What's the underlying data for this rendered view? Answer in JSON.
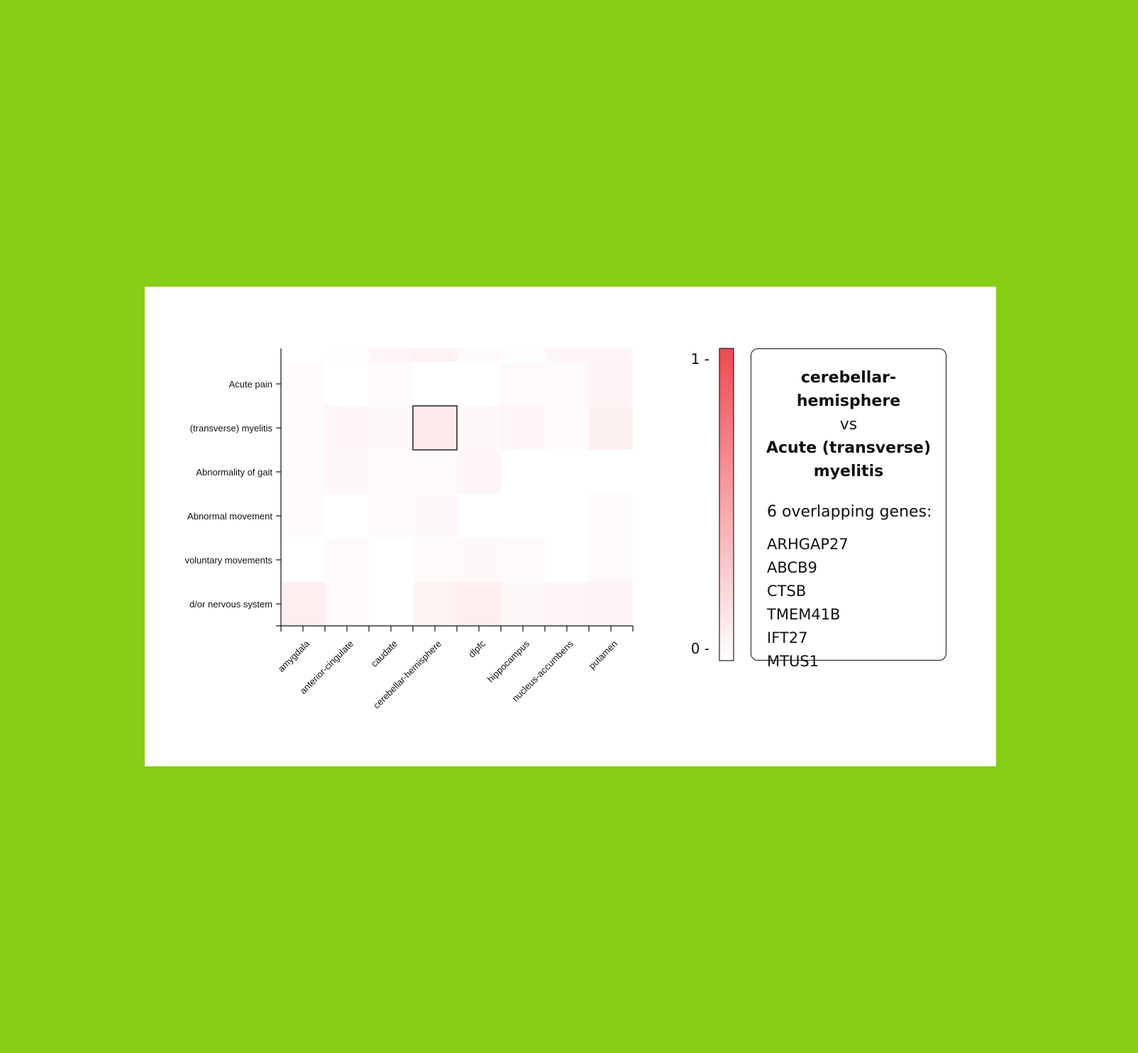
{
  "chart_data": {
    "type": "heatmap",
    "x_categories": [
      "amygdala",
      "anterior-cingulate",
      "caudate",
      "cerebellar-hemisphere",
      "dlpfc",
      "hippocampus",
      "nucleus-accumbens",
      "putamen"
    ],
    "y_categories": [
      "Acute pain",
      "(transverse) myelitis",
      "Abnormality of gait",
      "Abnormal movement",
      "voluntary movements",
      "d/or nervous system"
    ],
    "values": [
      [
        0.02,
        0.0,
        0.03,
        0.0,
        0.0,
        0.03,
        0.03,
        0.06
      ],
      [
        0.02,
        0.05,
        0.04,
        0.12,
        0.04,
        0.05,
        0.02,
        0.08
      ],
      [
        0.02,
        0.04,
        0.02,
        0.02,
        0.05,
        0.0,
        0.0,
        0.0
      ],
      [
        0.02,
        0.0,
        0.03,
        0.04,
        0.0,
        0.0,
        0.0,
        0.03
      ],
      [
        0.0,
        0.03,
        0.0,
        0.03,
        0.04,
        0.03,
        0.0,
        0.03
      ],
      [
        0.09,
        0.02,
        0.0,
        0.07,
        0.09,
        0.04,
        0.05,
        0.06
      ]
    ],
    "partial_top_row": [
      0.0,
      0.01,
      0.05,
      0.07,
      0.03,
      0.01,
      0.05,
      0.05
    ],
    "highlighted_cell": {
      "x": "cerebellar-hemisphere",
      "y": "(transverse) myelitis"
    },
    "color_scale": {
      "min": 0,
      "max": 1,
      "min_label": "0",
      "max_label": "1",
      "low_color": "#ffffff",
      "high_color": "#ee4a52"
    }
  },
  "info_panel": {
    "region": "cerebellar-hemisphere",
    "vs": "vs",
    "disease": "Acute (transverse) myelitis",
    "overlap_label": "6 overlapping genes:",
    "genes": [
      "ARHGAP27",
      "ABCB9",
      "CTSB",
      "TMEM41B",
      "IFT27",
      "MTUS1"
    ]
  }
}
